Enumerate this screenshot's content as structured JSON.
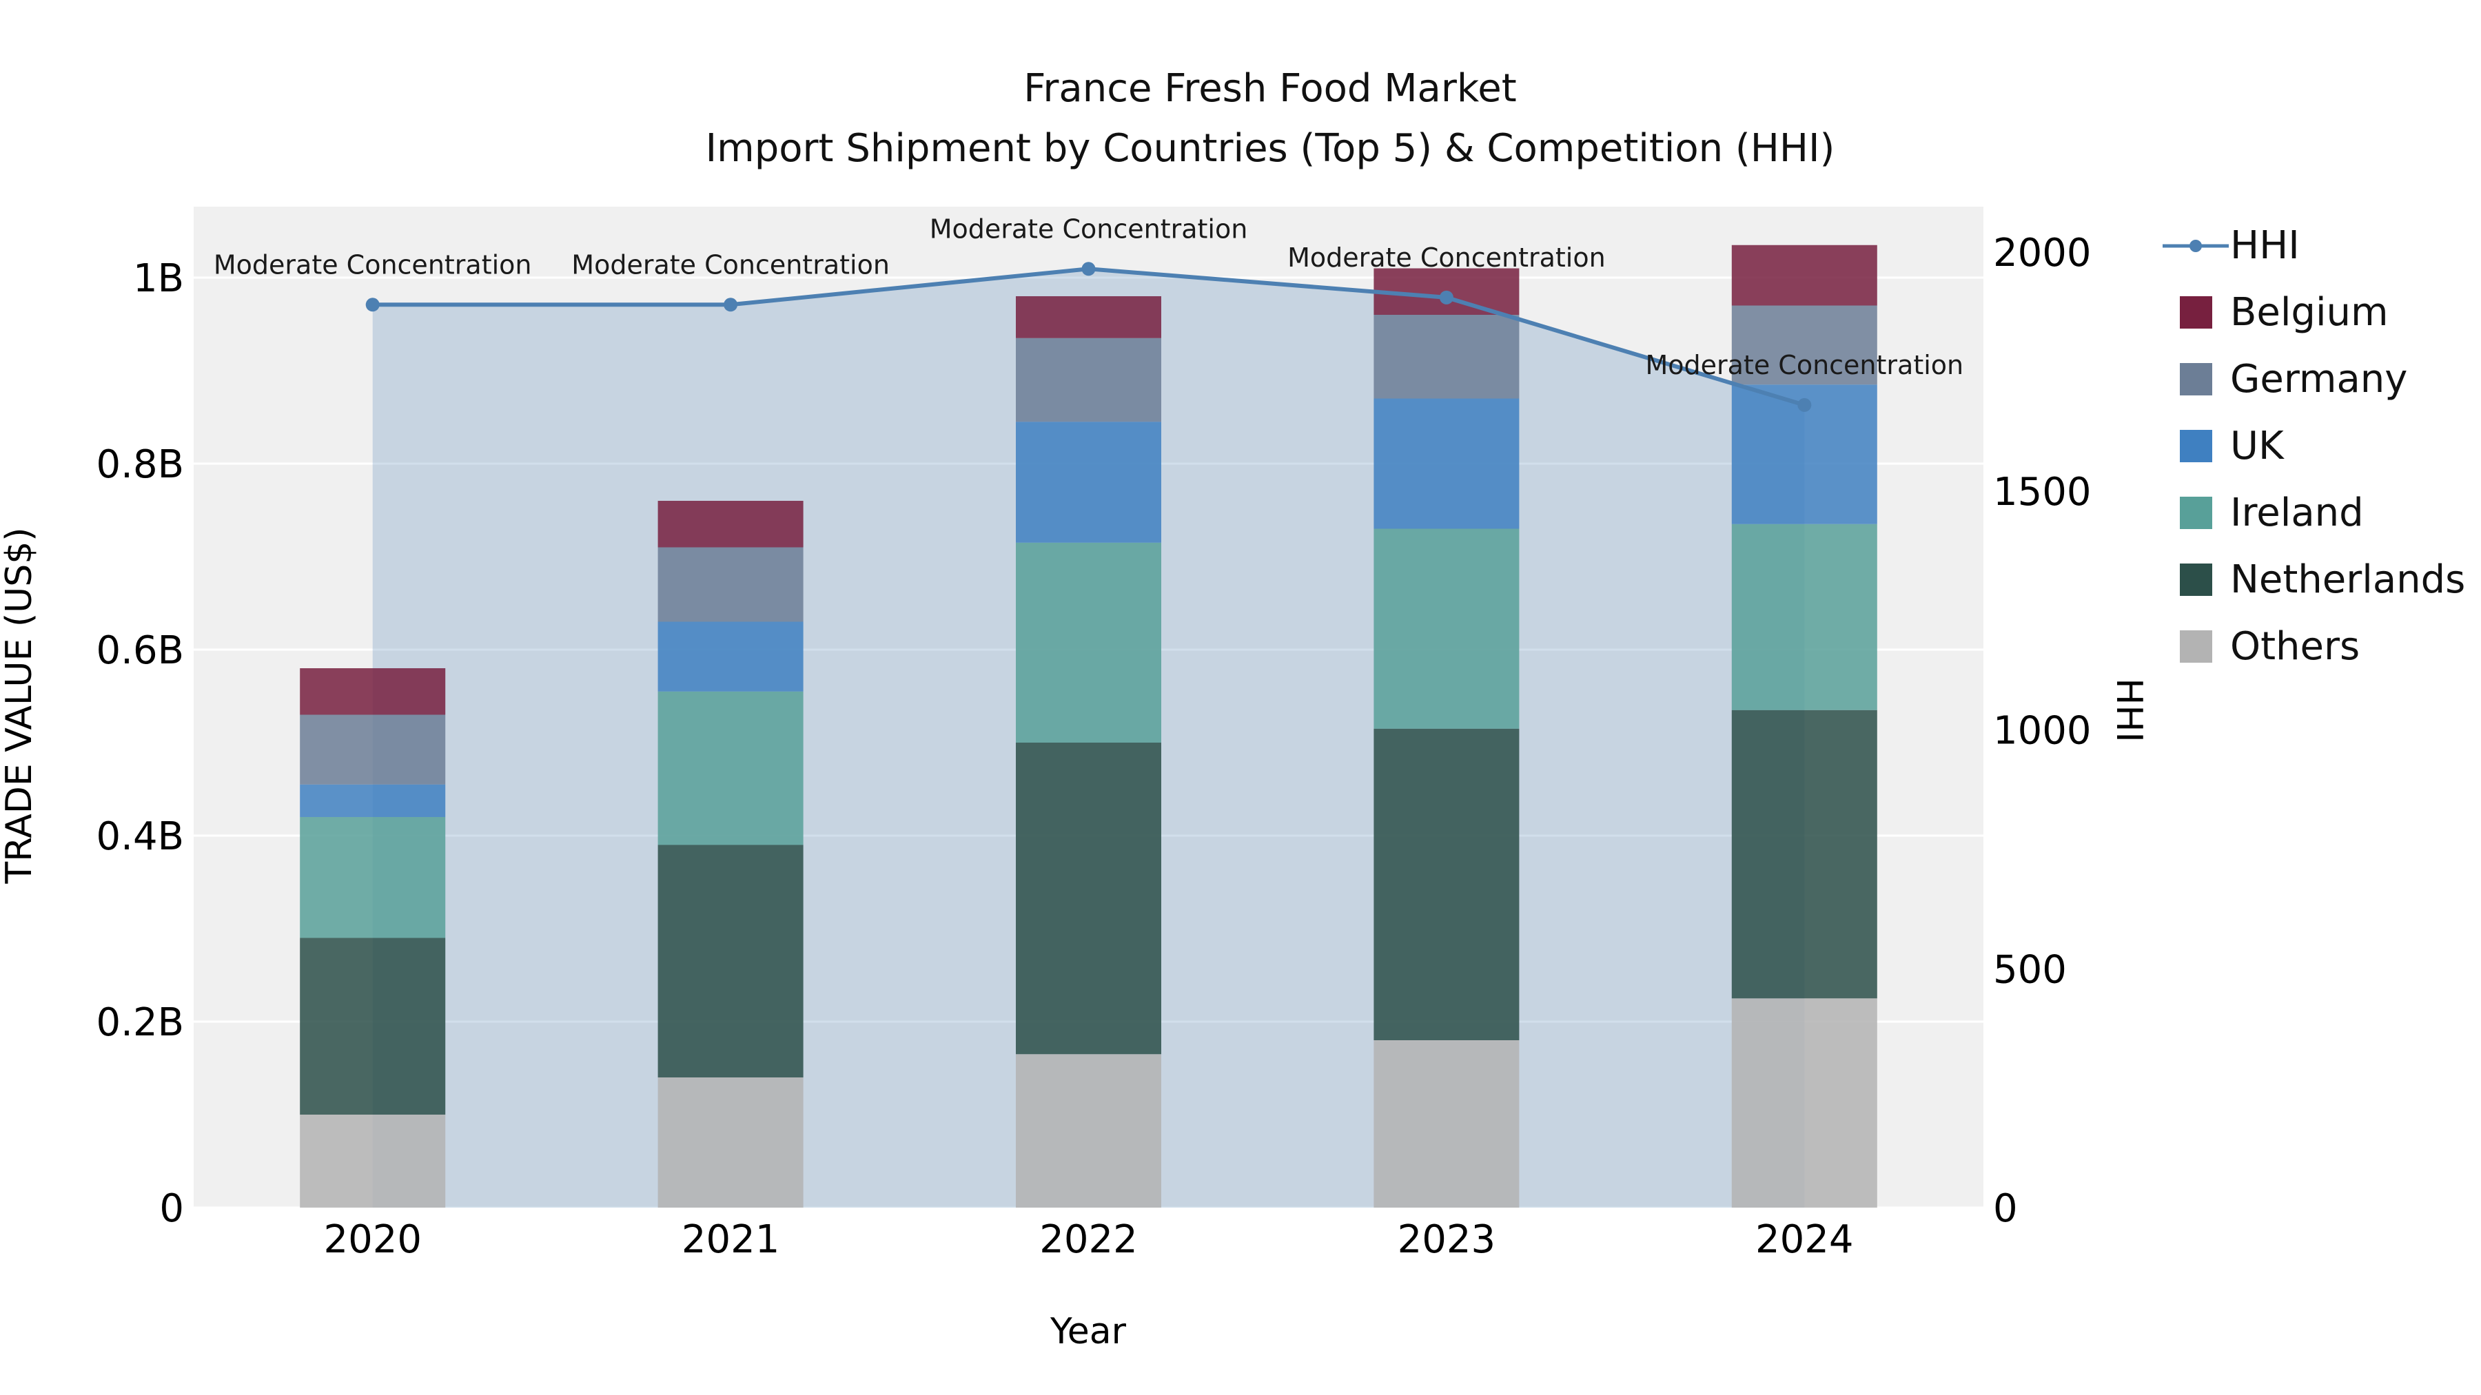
{
  "title": {
    "line1": "France Fresh Food Market",
    "line2": "Import Shipment by Countries (Top 5) & Competition (HHI)"
  },
  "chart_data": {
    "type": "bar",
    "subtype": "stacked_bar_with_line_overlay",
    "title": "France Fresh Food Market — Import Shipment by Countries (Top 5) & Competition (HHI)",
    "xlabel": "Year",
    "ylabel": "TRADE VALUE (US$)",
    "y2label": "HHI",
    "unit": "billions of US$",
    "categories": [
      "2020",
      "2021",
      "2022",
      "2023",
      "2024"
    ],
    "series": [
      {
        "name": "Others",
        "color": "#b3b3b3",
        "values": [
          0.1,
          0.14,
          0.165,
          0.18,
          0.225
        ]
      },
      {
        "name": "Netherlands",
        "color": "#2c4f49",
        "values": [
          0.19,
          0.25,
          0.335,
          0.335,
          0.31
        ]
      },
      {
        "name": "Ireland",
        "color": "#58a099",
        "values": [
          0.13,
          0.165,
          0.215,
          0.215,
          0.2
        ]
      },
      {
        "name": "UK",
        "color": "#3f80c1",
        "values": [
          0.035,
          0.075,
          0.13,
          0.14,
          0.15
        ]
      },
      {
        "name": "Germany",
        "color": "#6c7e96",
        "values": [
          0.075,
          0.08,
          0.09,
          0.09,
          0.085
        ]
      },
      {
        "name": "Belgium",
        "color": "#77203f",
        "values": [
          0.05,
          0.05,
          0.045,
          0.05,
          0.065
        ]
      }
    ],
    "bar_totals": [
      0.58,
      0.76,
      0.98,
      1.01,
      1.035
    ],
    "line_series": {
      "name": "HHI",
      "color": "#4d80b2",
      "axis": "right",
      "values": [
        1890,
        1890,
        1965,
        1905,
        1680
      ],
      "point_annotations": [
        "Moderate Concentration",
        "Moderate Concentration",
        "Moderate Concentration",
        "Moderate Concentration",
        "Moderate Concentration"
      ],
      "area_fill": "rgba(77,128,178,0.25)"
    },
    "y_left": {
      "tick_labels": [
        "0",
        "0.2B",
        "0.4B",
        "0.6B",
        "0.8B",
        "1B"
      ],
      "tick_values": [
        0,
        0.2,
        0.4,
        0.6,
        0.8,
        1.0
      ],
      "range": [
        0,
        1.076
      ]
    },
    "y_right": {
      "tick_labels": [
        "0",
        "500",
        "1000",
        "1500",
        "2000"
      ],
      "tick_values": [
        0,
        500,
        1000,
        1500,
        2000
      ],
      "range": [
        0,
        2095
      ]
    },
    "legend": {
      "position": "right",
      "entries": [
        {
          "label": "HHI",
          "type": "line",
          "color": "#4d80b2"
        },
        {
          "label": "Belgium",
          "type": "square",
          "color": "#77203f"
        },
        {
          "label": "Germany",
          "type": "square",
          "color": "#6c7e96"
        },
        {
          "label": "UK",
          "type": "square",
          "color": "#3f80c1"
        },
        {
          "label": "Ireland",
          "type": "square",
          "color": "#58a099"
        },
        {
          "label": "Netherlands",
          "type": "square",
          "color": "#2c4f49"
        },
        {
          "label": "Others",
          "type": "square",
          "color": "#b3b3b3"
        }
      ]
    },
    "plot_bg": "#f0f0f0",
    "grid": "white horizontal lines at left-axis ticks",
    "bar_opacity": 0.85
  }
}
